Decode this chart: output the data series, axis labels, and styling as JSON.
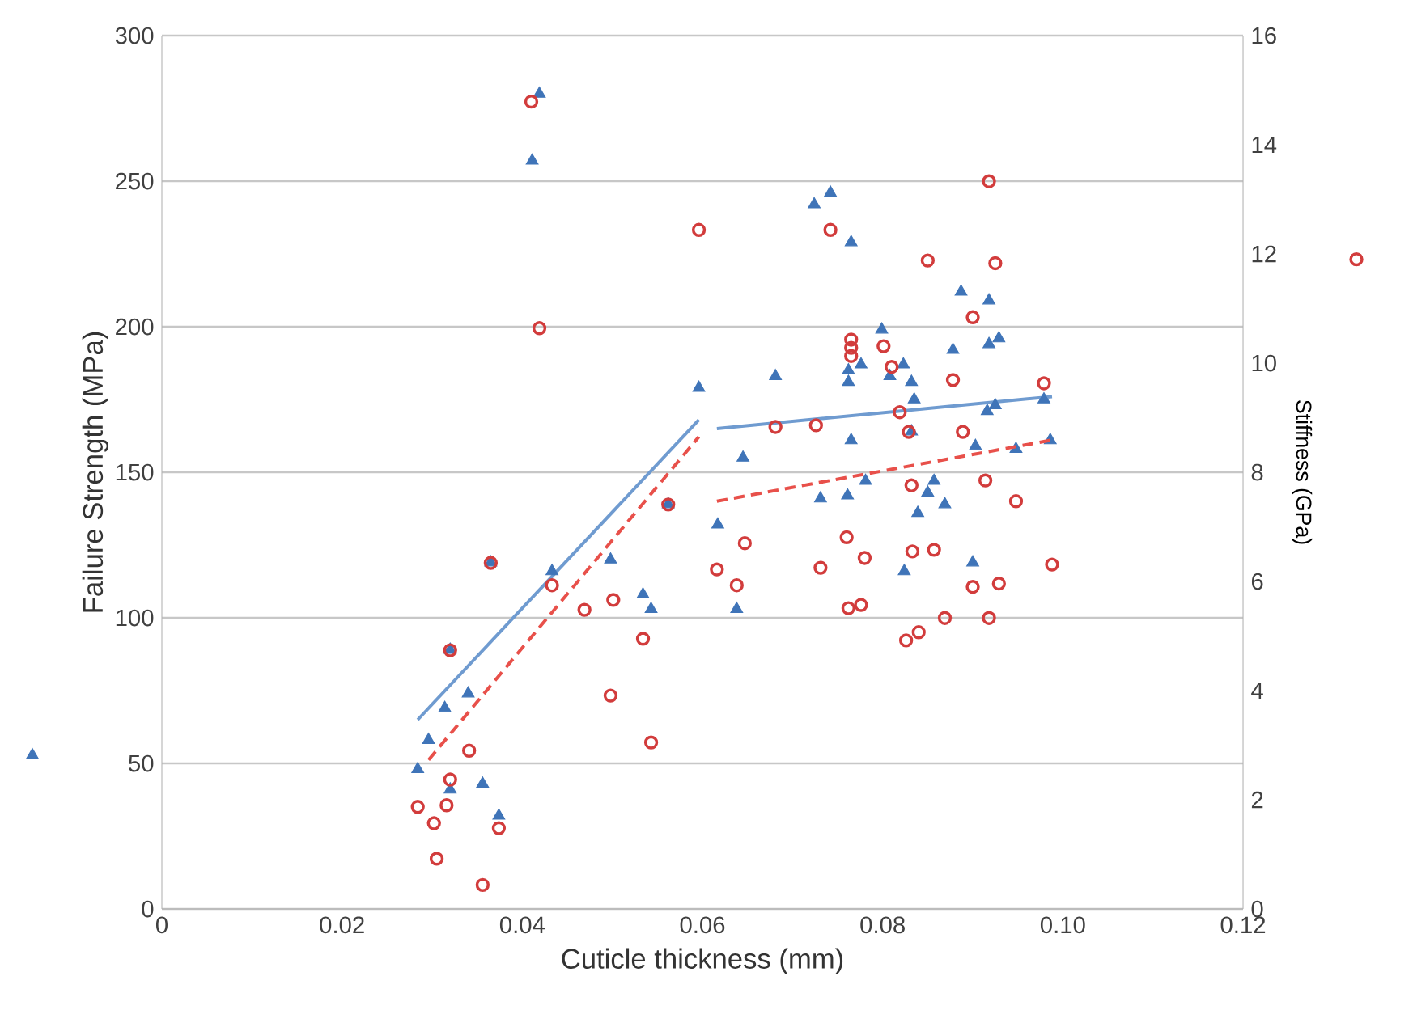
{
  "chart_data": {
    "type": "scatter",
    "xlabel": "Cuticle thickness (mm)",
    "ylabel": "Failure Strength (MPa)",
    "y2label": "Stiffness (GPa)",
    "xlim": [
      0,
      0.12
    ],
    "xticks": [
      0,
      0.02,
      0.04,
      0.06,
      0.08,
      {
        "value": 0.1,
        "label": "0.10"
      },
      0.12
    ],
    "ylim": [
      0,
      300
    ],
    "yticks": [
      0,
      50,
      100,
      150,
      200,
      250,
      300
    ],
    "y2lim": [
      0,
      16
    ],
    "y2ticks": [
      0,
      2,
      4,
      6,
      8,
      10,
      12,
      14,
      16
    ],
    "grid": "y",
    "series": [
      {
        "marker": "triangle",
        "color": "#3f74b8",
        "x": [
          0.0284,
          0.0296,
          0.0314,
          0.032,
          0.034,
          0.0356,
          0.0374,
          0.0365,
          0.032,
          0.0433,
          0.0498,
          0.0534,
          0.0543,
          0.0562,
          0.0596,
          0.0617,
          0.0638,
          0.0645,
          0.0411,
          0.0419,
          0.0724,
          0.0742,
          0.0765,
          0.0681,
          0.0799,
          0.0762,
          0.0762,
          0.0776,
          0.0823,
          0.0808,
          0.0832,
          0.0835,
          0.0878,
          0.0887,
          0.0918,
          0.0918,
          0.0929,
          0.0916,
          0.0925,
          0.0979,
          0.0765,
          0.0903,
          0.0948,
          0.0986,
          0.0781,
          0.0731,
          0.0761,
          0.0857,
          0.085,
          0.0869,
          0.0839,
          0.0824,
          0.09,
          0.0832
        ],
        "values": [
          48,
          58,
          69,
          41,
          74,
          43,
          32,
          119,
          89,
          116,
          120,
          108,
          103,
          139,
          179,
          132,
          103,
          155,
          257,
          280,
          242,
          246,
          229,
          183,
          199,
          185,
          181,
          187,
          187,
          183,
          181,
          175,
          192,
          212,
          209,
          194,
          196,
          171,
          173,
          175,
          161,
          159,
          158,
          161,
          147,
          141,
          142,
          147,
          143,
          139,
          136,
          116,
          119,
          164
        ]
      },
      {
        "marker": "circle",
        "axis": "y2",
        "color": "#d23c3c",
        "x": [
          0.0284,
          0.0302,
          0.0305,
          0.0316,
          0.032,
          0.0341,
          0.0374,
          0.0356,
          0.032,
          0.0365,
          0.0433,
          0.0469,
          0.0501,
          0.0534,
          0.0498,
          0.0543,
          0.0562,
          0.0616,
          0.0647,
          0.0638,
          0.041,
          0.0596,
          0.0419,
          0.0918,
          0.0742,
          0.085,
          0.0925,
          0.09,
          0.0765,
          0.0765,
          0.0765,
          0.0801,
          0.081,
          0.0878,
          0.0979,
          0.0819,
          0.0681,
          0.0726,
          0.0889,
          0.0829,
          0.0832,
          0.0914,
          0.0948,
          0.076,
          0.0731,
          0.078,
          0.0833,
          0.0857,
          0.0988,
          0.09,
          0.0929,
          0.0762,
          0.0776,
          0.0869,
          0.0918,
          0.0826,
          0.084
        ],
        "values": [
          1.87,
          1.57,
          0.92,
          1.9,
          2.37,
          2.9,
          1.48,
          0.44,
          4.74,
          6.34,
          5.93,
          5.48,
          5.66,
          4.95,
          3.91,
          3.05,
          7.41,
          6.22,
          6.7,
          5.93,
          14.79,
          12.44,
          10.64,
          13.33,
          12.44,
          11.88,
          11.83,
          10.84,
          10.43,
          10.28,
          10.13,
          10.31,
          9.93,
          9.69,
          9.63,
          9.1,
          8.83,
          8.86,
          8.74,
          8.74,
          7.76,
          7.85,
          7.47,
          6.81,
          6.25,
          6.43,
          6.55,
          6.58,
          6.31,
          5.9,
          5.96,
          5.51,
          5.57,
          5.33,
          5.33,
          4.92,
          5.07
        ]
      },
      {
        "type": "line",
        "line_style": "solid",
        "color": "#6f9bd0",
        "x": [
          0.0284,
          0.0596
        ],
        "values": [
          65,
          168
        ]
      },
      {
        "type": "line",
        "line_style": "solid",
        "color": "#6f9bd0",
        "x": [
          0.0616,
          0.0988
        ],
        "values": [
          165,
          176
        ]
      },
      {
        "type": "line",
        "line_style": "dashed",
        "axis": "y2",
        "color": "#e8504a",
        "x": [
          0.0296,
          0.0596
        ],
        "values": [
          2.73,
          8.65
        ]
      },
      {
        "type": "line",
        "line_style": "dashed",
        "axis": "y2",
        "color": "#e8504a",
        "x": [
          0.0616,
          0.0988
        ],
        "values": [
          7.47,
          8.59
        ]
      }
    ]
  }
}
